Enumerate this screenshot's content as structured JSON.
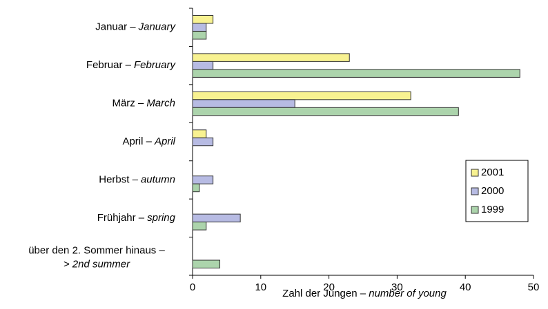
{
  "chart_data": {
    "type": "barh",
    "categories": [
      [
        "Januar –",
        "January"
      ],
      [
        "Februar –",
        "February"
      ],
      [
        "März –",
        "March"
      ],
      [
        "April –",
        "April"
      ],
      [
        "Herbst –",
        "autumn"
      ],
      [
        "Frühjahr –",
        "spring"
      ],
      [
        "über den 2. Sommer hinaus –",
        "> 2nd summer"
      ]
    ],
    "series": [
      {
        "name": "2001",
        "color": "#f8f291",
        "values": [
          3,
          23,
          32,
          2,
          0,
          0,
          0
        ]
      },
      {
        "name": "2000",
        "color": "#b7bbe3",
        "values": [
          2,
          3,
          15,
          3,
          3,
          7,
          0
        ]
      },
      {
        "name": "1999",
        "color": "#acd4ac",
        "values": [
          2,
          48,
          39,
          0,
          1,
          2,
          4
        ]
      }
    ],
    "xlabel": [
      "Zahl der Jungen –",
      "number of young"
    ],
    "xlim": [
      0,
      50
    ],
    "xticks": [
      0,
      10,
      20,
      30,
      40,
      50
    ],
    "legend": "right"
  }
}
